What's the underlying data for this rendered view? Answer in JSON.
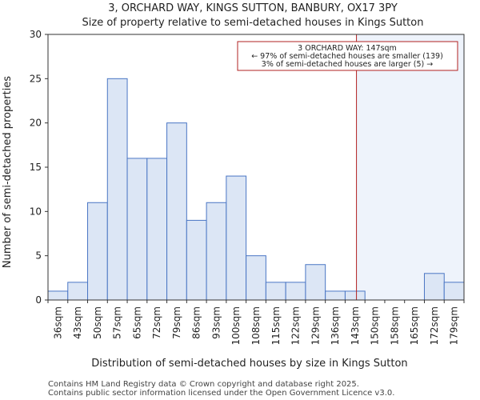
{
  "chart_data": {
    "type": "bar",
    "title": "3, ORCHARD WAY, KINGS SUTTON, BANBURY, OX17 3PY",
    "subtitle": "Size of property relative to semi-detached houses in Kings Sutton",
    "xlabel": "Distribution of semi-detached houses by size in Kings Sutton",
    "ylabel": "Number of semi-detached properties",
    "categories": [
      "36sqm",
      "43sqm",
      "50sqm",
      "57sqm",
      "65sqm",
      "72sqm",
      "79sqm",
      "86sqm",
      "93sqm",
      "100sqm",
      "108sqm",
      "115sqm",
      "122sqm",
      "129sqm",
      "136sqm",
      "143sqm",
      "150sqm",
      "158sqm",
      "165sqm",
      "172sqm",
      "179sqm"
    ],
    "values": [
      1,
      2,
      11,
      25,
      16,
      16,
      20,
      9,
      11,
      14,
      5,
      2,
      2,
      4,
      1,
      1,
      0,
      0,
      0,
      3,
      2
    ],
    "ylim": [
      0,
      30
    ],
    "yticks": [
      0,
      5,
      10,
      15,
      20,
      25,
      30
    ],
    "grid": false,
    "marker_value_sqm": 147,
    "colors": {
      "bar_fill": "#dce6f5",
      "bar_stroke": "#4a76c4",
      "marker": "#b22222",
      "shade": "#eef3fb"
    },
    "annotation": {
      "line1": "3 ORCHARD WAY: 147sqm",
      "line2": "← 97% of semi-detached houses are smaller (139)",
      "line3": "3% of semi-detached houses are larger (5) →"
    }
  },
  "footer": {
    "line1": "Contains HM Land Registry data © Crown copyright and database right 2025.",
    "line2": "Contains public sector information licensed under the Open Government Licence v3.0."
  }
}
